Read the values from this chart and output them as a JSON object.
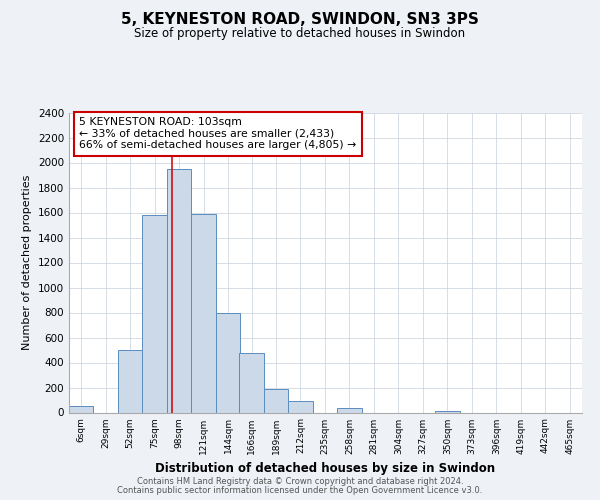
{
  "title": "5, KEYNESTON ROAD, SWINDON, SN3 3PS",
  "subtitle": "Size of property relative to detached houses in Swindon",
  "xlabel": "Distribution of detached houses by size in Swindon",
  "ylabel": "Number of detached properties",
  "bin_labels": [
    "6sqm",
    "29sqm",
    "52sqm",
    "75sqm",
    "98sqm",
    "121sqm",
    "144sqm",
    "166sqm",
    "189sqm",
    "212sqm",
    "235sqm",
    "258sqm",
    "281sqm",
    "304sqm",
    "327sqm",
    "350sqm",
    "373sqm",
    "396sqm",
    "419sqm",
    "442sqm",
    "465sqm"
  ],
  "bin_edges": [
    6,
    29,
    52,
    75,
    98,
    121,
    144,
    166,
    189,
    212,
    235,
    258,
    281,
    304,
    327,
    350,
    373,
    396,
    419,
    442,
    465
  ],
  "bar_heights": [
    55,
    0,
    500,
    1580,
    1950,
    1590,
    800,
    480,
    185,
    90,
    0,
    35,
    0,
    0,
    0,
    10,
    0,
    0,
    0,
    0
  ],
  "bar_color": "#ccd9e8",
  "bar_edge_color": "#5b8cbf",
  "red_line_x": 103,
  "annotation_title": "5 KEYNESTON ROAD: 103sqm",
  "annotation_line1": "← 33% of detached houses are smaller (2,433)",
  "annotation_line2": "66% of semi-detached houses are larger (4,805) →",
  "ylim": [
    0,
    2400
  ],
  "yticks": [
    0,
    200,
    400,
    600,
    800,
    1000,
    1200,
    1400,
    1600,
    1800,
    2000,
    2200,
    2400
  ],
  "footer1": "Contains HM Land Registry data © Crown copyright and database right 2024.",
  "footer2": "Contains public sector information licensed under the Open Government Licence v3.0.",
  "background_color": "#eef2f7",
  "plot_bg_color": "#ffffff",
  "grid_color": "#c8d0dc"
}
